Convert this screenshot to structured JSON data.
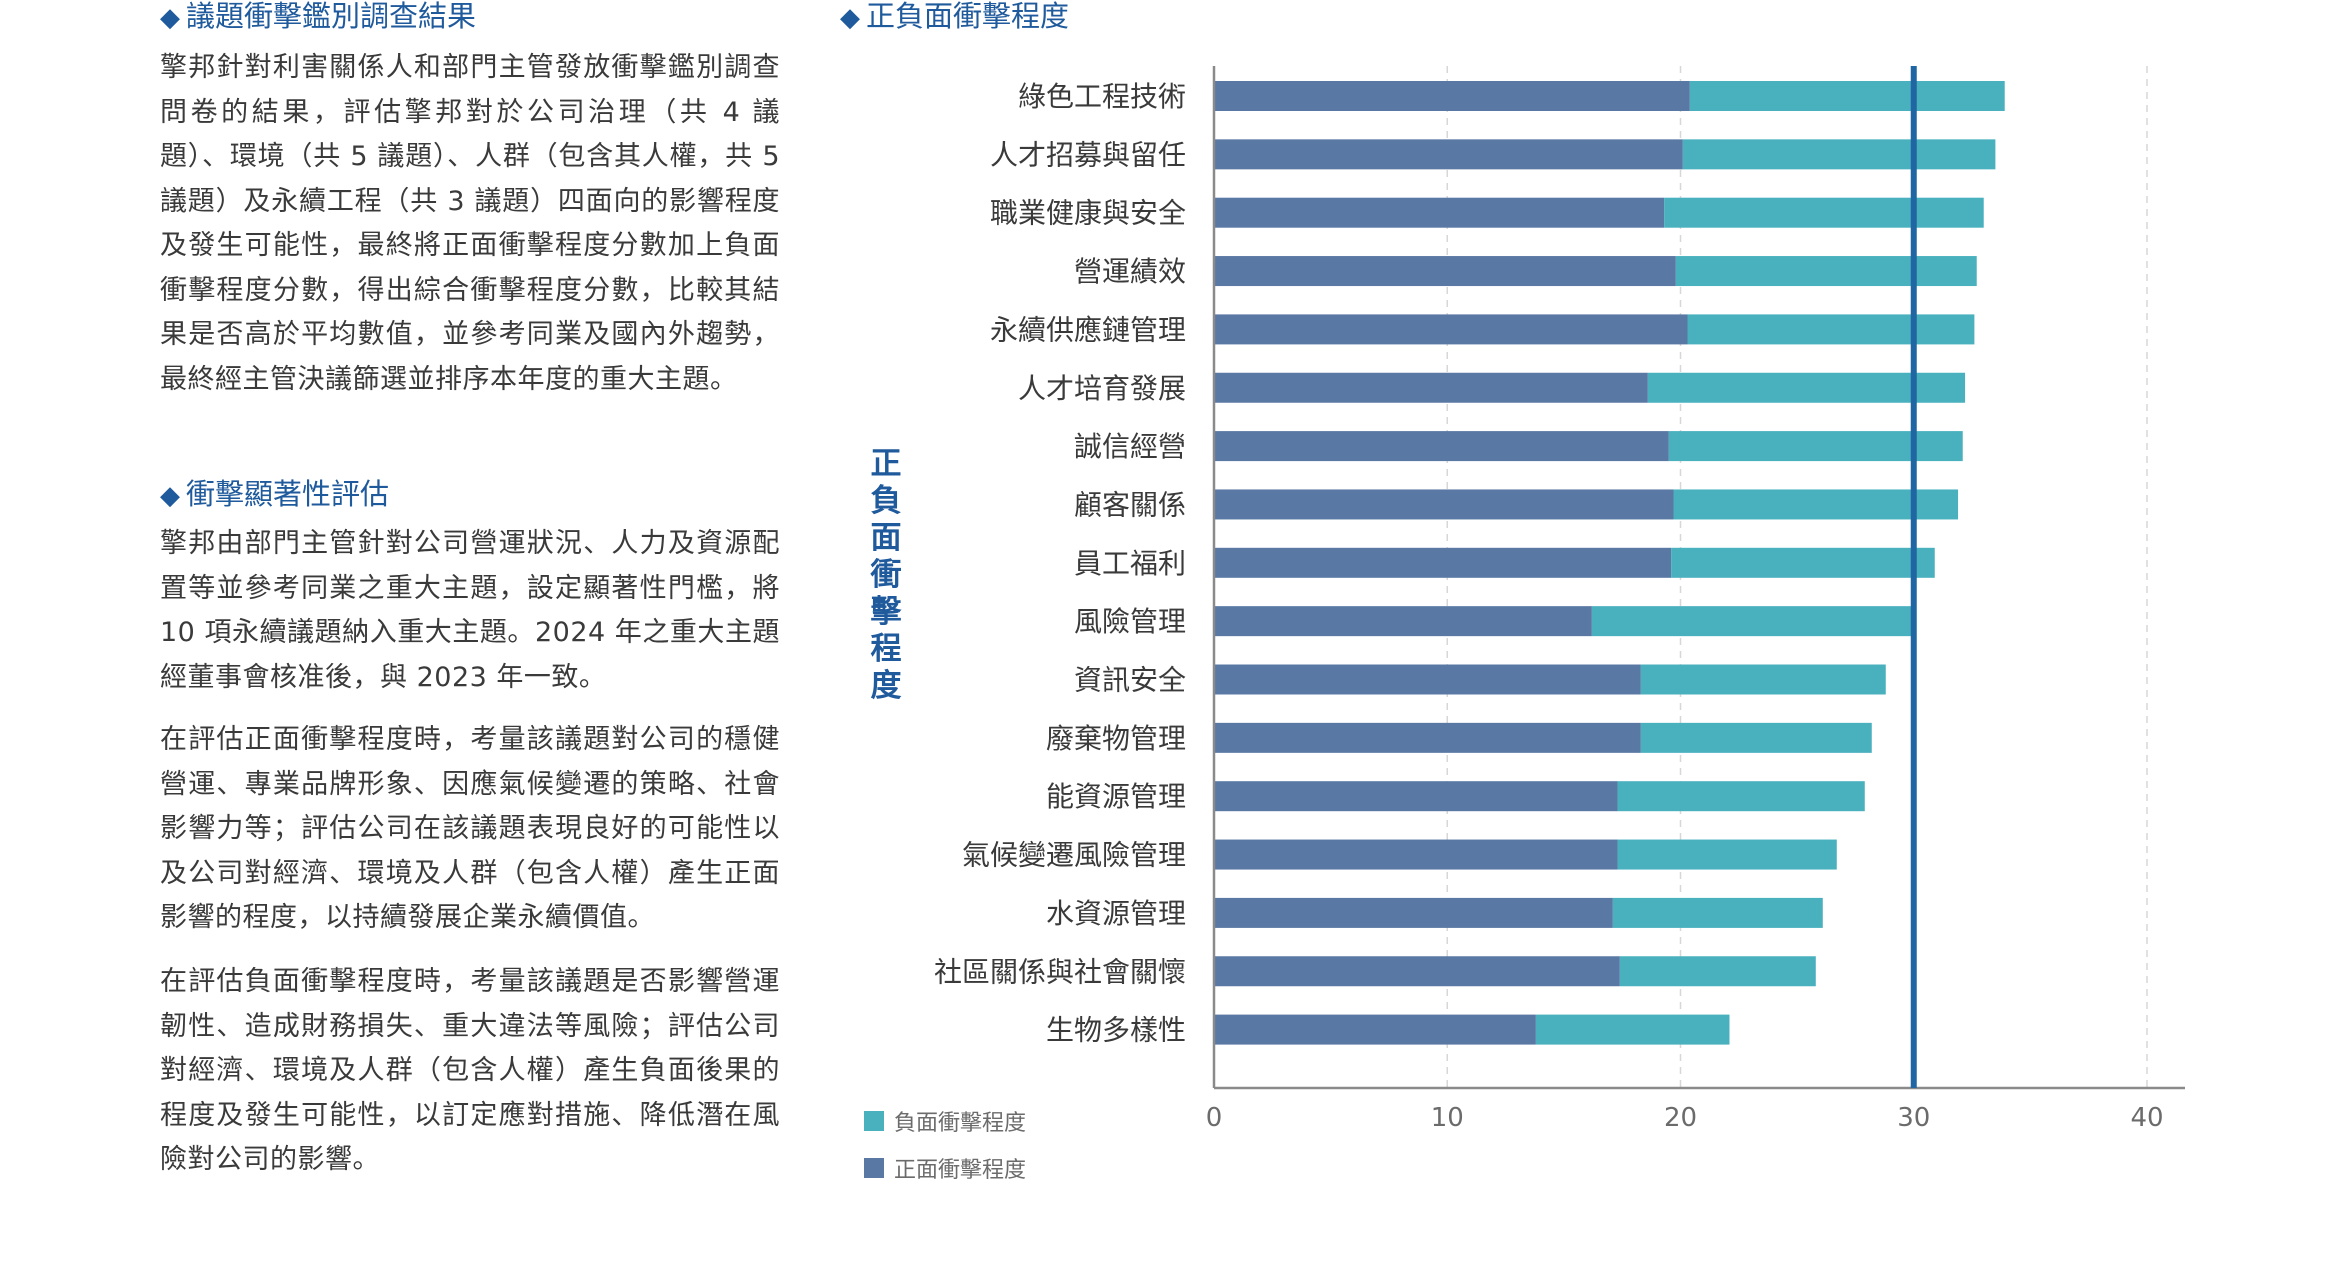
{
  "left": {
    "section1": {
      "heading": "議題衝擊鑑別調查結果",
      "para": "擎邦針對利害關係人和部門主管發放衝擊鑑別調查問卷的結果，評估擎邦對於公司治理（共 4 議題）、環境（共 5 議題）、人群（包含其人權，共 5 議題）及永續工程（共 3 議題）四面向的影響程度及發生可能性，最終將正面衝擊程度分數加上負面衝擊程度分數，得出綜合衝擊程度分數，比較其結果是否高於平均數值，並參考同業及國內外趨勢，最終經主管決議篩選並排序本年度的重大主題。"
    },
    "section2": {
      "heading": "衝擊顯著性評估",
      "para1": "擎邦由部門主管針對公司營運狀況、人力及資源配置等並參考同業之重大主題，設定顯著性門檻，將 10 項永續議題納入重大主題。2024 年之重大主題經董事會核准後，與 2023 年一致。",
      "para2": "在評估正面衝擊程度時，考量該議題對公司的穩健營運、專業品牌形象、因應氣候變遷的策略、社會影響力等；評估公司在該議題表現良好的可能性以及公司對經濟、環境及人群（包含人權）產生正面影響的程度，以持續發展企業永續價值。",
      "para3": "在評估負面衝擊程度時，考量該議題是否影響營運韌性、造成財務損失、重大違法等風險；評估公司對經濟、環境及人群（包含人權）產生負面後果的程度及發生可能性，以訂定應對措施、降低潛在風險對公司的影響。"
    }
  },
  "chart_data": {
    "type": "bar",
    "orientation": "horizontal",
    "stacked": true,
    "title": "正負面衝擊程度",
    "ylabel": "正負面衝擊程度",
    "xlim": [
      0,
      40
    ],
    "xticks": [
      0,
      10,
      20,
      30,
      40
    ],
    "threshold": 30,
    "grid": "vertical dashed",
    "legend_placement": "bottom-left",
    "categories": [
      "綠色工程技術",
      "人才招募與留任",
      "職業健康與安全",
      "營運績效",
      "永續供應鏈管理",
      "人才培育發展",
      "誠信經營",
      "顧客關係",
      "員工福利",
      "風險管理",
      "資訊安全",
      "廢棄物管理",
      "能資源管理",
      "氣候變遷風險管理",
      "水資源管理",
      "社區關係與社會關懷",
      "生物多樣性"
    ],
    "series": [
      {
        "name": "正面衝擊程度",
        "color": "#5a78a4",
        "values": [
          20.4,
          20.1,
          19.3,
          19.8,
          20.3,
          18.6,
          19.5,
          19.7,
          19.6,
          16.2,
          18.3,
          18.3,
          17.3,
          17.3,
          17.1,
          17.4,
          13.8
        ]
      },
      {
        "name": "負面衝擊程度",
        "color": "#49b0be",
        "values": [
          13.5,
          13.4,
          13.7,
          12.9,
          12.3,
          13.6,
          12.6,
          12.2,
          11.3,
          13.8,
          10.5,
          9.9,
          10.6,
          9.4,
          9.0,
          8.4,
          8.3
        ]
      }
    ],
    "colors": {
      "axis": "#8a8a8a",
      "threshold": "#1f66a3",
      "grid": "#d7d7d7"
    }
  }
}
